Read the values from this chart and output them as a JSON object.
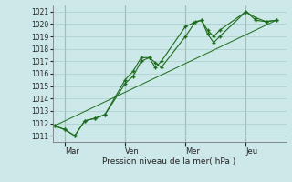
{
  "bg_color": "#cce8e8",
  "grid_color": "#aacccc",
  "line_color": "#1a6b1a",
  "marker_color": "#1a6b1a",
  "xlabel": "Pression niveau de la mer( hPa )",
  "ylim": [
    1010.5,
    1021.5
  ],
  "yticks": [
    1011,
    1012,
    1013,
    1014,
    1015,
    1016,
    1017,
    1018,
    1019,
    1020,
    1021
  ],
  "xtick_labels": [
    "Mar",
    "Ven",
    "Mer",
    "Jeu"
  ],
  "xtick_positions": [
    0.5,
    3.5,
    6.5,
    9.5
  ],
  "vline_positions": [
    0.5,
    3.5,
    6.5,
    9.5
  ],
  "xlim": [
    -0.1,
    11.5
  ],
  "series1_x": [
    0.0,
    0.5,
    1.0,
    1.5,
    2.0,
    2.5,
    3.5,
    3.9,
    4.3,
    4.7,
    5.0,
    5.3,
    6.5,
    7.0,
    7.3,
    7.6,
    7.9,
    8.2,
    9.5,
    10.0,
    10.5,
    11.0
  ],
  "series1_y": [
    1011.8,
    1011.5,
    1011.0,
    1012.2,
    1012.4,
    1012.7,
    1015.5,
    1016.2,
    1017.3,
    1017.3,
    1016.9,
    1016.5,
    1019.0,
    1020.2,
    1020.3,
    1019.2,
    1018.5,
    1019.0,
    1021.0,
    1020.3,
    1020.2,
    1020.3
  ],
  "series2_x": [
    0.0,
    0.5,
    1.0,
    1.5,
    2.0,
    2.5,
    3.5,
    3.9,
    4.3,
    4.7,
    5.0,
    5.3,
    6.5,
    6.9,
    7.3,
    7.6,
    7.9,
    8.2,
    9.5,
    10.0,
    10.5,
    11.0
  ],
  "series2_y": [
    1011.8,
    1011.5,
    1011.0,
    1012.2,
    1012.4,
    1012.7,
    1015.2,
    1015.8,
    1017.0,
    1017.3,
    1016.5,
    1017.0,
    1019.8,
    1020.1,
    1020.3,
    1019.5,
    1019.0,
    1019.5,
    1021.0,
    1020.5,
    1020.2,
    1020.3
  ],
  "series3_x": [
    0.0,
    11.0
  ],
  "series3_y": [
    1011.8,
    1020.3
  ]
}
